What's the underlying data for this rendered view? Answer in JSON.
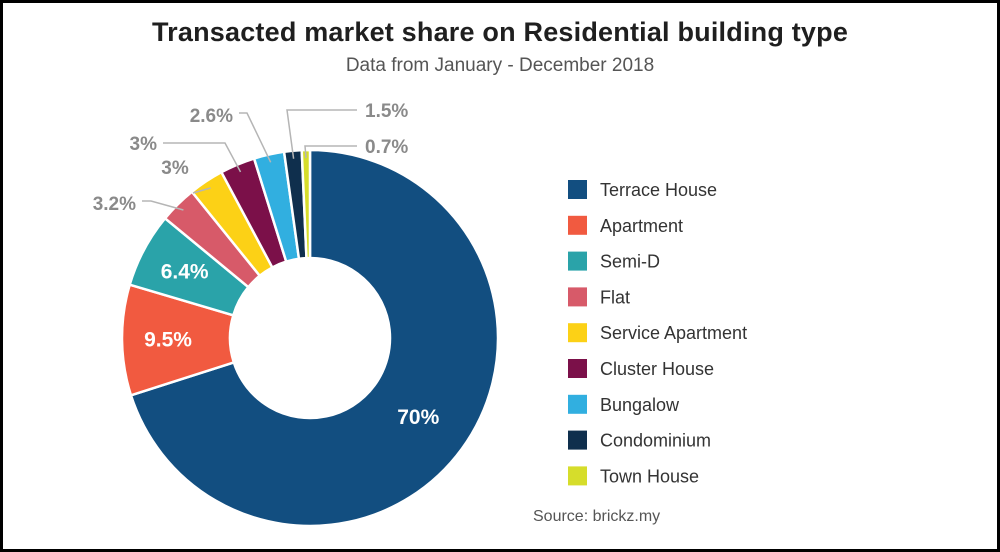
{
  "chart_data": {
    "type": "pie",
    "donut": true,
    "title": "Transacted market share on Residential building type",
    "subtitle": "Data from January - December 2018",
    "source": "Source: brickz.my",
    "legend_position": "right",
    "slices": [
      {
        "label": "Terrace House",
        "value": 70,
        "display": "70%",
        "color": "#124e80"
      },
      {
        "label": "Apartment",
        "value": 9.5,
        "display": "9.5%",
        "color": "#f15a40"
      },
      {
        "label": "Semi-D",
        "value": 6.4,
        "display": "6.4%",
        "color": "#2aa3a9"
      },
      {
        "label": "Flat",
        "value": 3.2,
        "display": "3.2%",
        "color": "#d75a69"
      },
      {
        "label": "Service Apartment",
        "value": 3,
        "display": "3%",
        "color": "#fcd116"
      },
      {
        "label": "Cluster House",
        "value": 3,
        "display": "3%",
        "color": "#7b1049"
      },
      {
        "label": "Bungalow",
        "value": 2.6,
        "display": "2.6%",
        "color": "#31afe0"
      },
      {
        "label": "Condominium",
        "value": 1.5,
        "display": "1.5%",
        "color": "#0f2f4d"
      },
      {
        "label": "Town House",
        "value": 0.7,
        "display": "0.7%",
        "color": "#d6dd2b"
      }
    ]
  }
}
